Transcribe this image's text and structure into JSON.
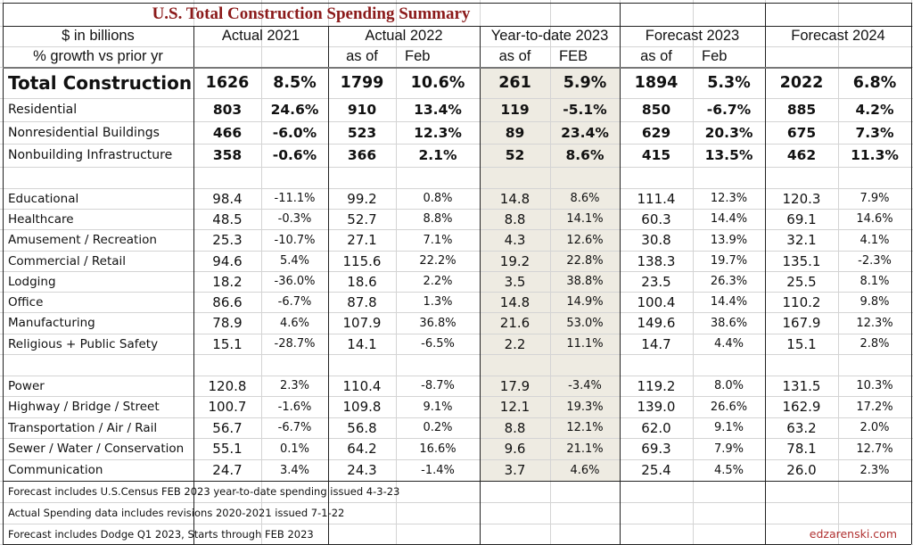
{
  "title": "U.S. Total Construction Spending Summary",
  "header": {
    "row1_label": "$ in billions",
    "row2_label": "% growth vs prior yr",
    "groups": [
      {
        "label": "Actual 2021",
        "sub": [
          "",
          ""
        ]
      },
      {
        "label": "Actual 2022",
        "sub": [
          "as of",
          "Feb"
        ]
      },
      {
        "label": "Year-to-date 2023",
        "sub": [
          "as of",
          "FEB"
        ]
      },
      {
        "label": "Forecast 2023",
        "sub": [
          "as of",
          "Feb"
        ]
      },
      {
        "label": "Forecast 2024",
        "sub": [
          "",
          ""
        ]
      }
    ]
  },
  "total": {
    "label": "Total Construction",
    "values": [
      "1626",
      "8.5%",
      "1799",
      "10.6%",
      "261",
      "5.9%",
      "1894",
      "5.3%",
      "2022",
      "6.8%"
    ]
  },
  "major": [
    {
      "label": "Residential",
      "values": [
        "803",
        "24.6%",
        "910",
        "13.4%",
        "119",
        "-5.1%",
        "850",
        "-6.7%",
        "885",
        "4.2%"
      ]
    },
    {
      "label": "Nonresidential Buildings",
      "values": [
        "466",
        "-6.0%",
        "523",
        "12.3%",
        "89",
        "23.4%",
        "629",
        "20.3%",
        "675",
        "7.3%"
      ]
    },
    {
      "label": "Nonbuilding Infrastructure",
      "values": [
        "358",
        "-0.6%",
        "366",
        "2.1%",
        "52",
        "8.6%",
        "415",
        "13.5%",
        "462",
        "11.3%"
      ]
    }
  ],
  "nonres": [
    {
      "label": "Educational",
      "values": [
        "98.4",
        "-11.1%",
        "99.2",
        "0.8%",
        "14.8",
        "8.6%",
        "111.4",
        "12.3%",
        "120.3",
        "7.9%"
      ]
    },
    {
      "label": "Healthcare",
      "values": [
        "48.5",
        "-0.3%",
        "52.7",
        "8.8%",
        "8.8",
        "14.1%",
        "60.3",
        "14.4%",
        "69.1",
        "14.6%"
      ]
    },
    {
      "label": "Amusement / Recreation",
      "values": [
        "25.3",
        "-10.7%",
        "27.1",
        "7.1%",
        "4.3",
        "12.6%",
        "30.8",
        "13.9%",
        "32.1",
        "4.1%"
      ]
    },
    {
      "label": "Commercial / Retail",
      "values": [
        "94.6",
        "5.4%",
        "115.6",
        "22.2%",
        "19.2",
        "22.8%",
        "138.3",
        "19.7%",
        "135.1",
        "-2.3%"
      ]
    },
    {
      "label": "Lodging",
      "values": [
        "18.2",
        "-36.0%",
        "18.6",
        "2.2%",
        "3.5",
        "38.8%",
        "23.5",
        "26.3%",
        "25.5",
        "8.1%"
      ]
    },
    {
      "label": "Office",
      "values": [
        "86.6",
        "-6.7%",
        "87.8",
        "1.3%",
        "14.8",
        "14.9%",
        "100.4",
        "14.4%",
        "110.2",
        "9.8%"
      ]
    },
    {
      "label": "Manufacturing",
      "values": [
        "78.9",
        "4.6%",
        "107.9",
        "36.8%",
        "21.6",
        "53.0%",
        "149.6",
        "38.6%",
        "167.9",
        "12.3%"
      ]
    },
    {
      "label": "Religious + Public Safety",
      "values": [
        "15.1",
        "-28.7%",
        "14.1",
        "-6.5%",
        "2.2",
        "11.1%",
        "14.7",
        "4.4%",
        "15.1",
        "2.8%"
      ]
    }
  ],
  "infra": [
    {
      "label": "Power",
      "values": [
        "120.8",
        "2.3%",
        "110.4",
        "-8.7%",
        "17.9",
        "-3.4%",
        "119.2",
        "8.0%",
        "131.5",
        "10.3%"
      ]
    },
    {
      "label": "Highway / Bridge / Street",
      "values": [
        "100.7",
        "-1.6%",
        "109.8",
        "9.1%",
        "12.1",
        "19.3%",
        "139.0",
        "26.6%",
        "162.9",
        "17.2%"
      ]
    },
    {
      "label": "Transportation / Air / Rail",
      "values": [
        "56.7",
        "-6.7%",
        "56.8",
        "0.2%",
        "8.8",
        "12.1%",
        "62.0",
        "9.1%",
        "63.2",
        "2.0%"
      ]
    },
    {
      "label": "Sewer / Water / Conservation",
      "values": [
        "55.1",
        "0.1%",
        "64.2",
        "16.6%",
        "9.6",
        "21.1%",
        "69.3",
        "7.9%",
        "78.1",
        "12.7%"
      ]
    },
    {
      "label": "Communication",
      "values": [
        "24.7",
        "3.4%",
        "24.3",
        "-1.4%",
        "3.7",
        "4.6%",
        "25.4",
        "4.5%",
        "26.0",
        "2.3%"
      ]
    }
  ],
  "notes": [
    "Forecast includes U.S.Census FEB 2023 year-to-date spending issued 4-3-23",
    "Actual Spending data includes revisions 2020-2021 issued 7-1-22",
    "Forecast includes Dodge Q1 2023, Starts through FEB 2023"
  ],
  "credit": "edzarenski.com",
  "colors": {
    "title": "#8b1a1a",
    "ytd_shade": "#eeebe2",
    "credit": "#b03030"
  }
}
